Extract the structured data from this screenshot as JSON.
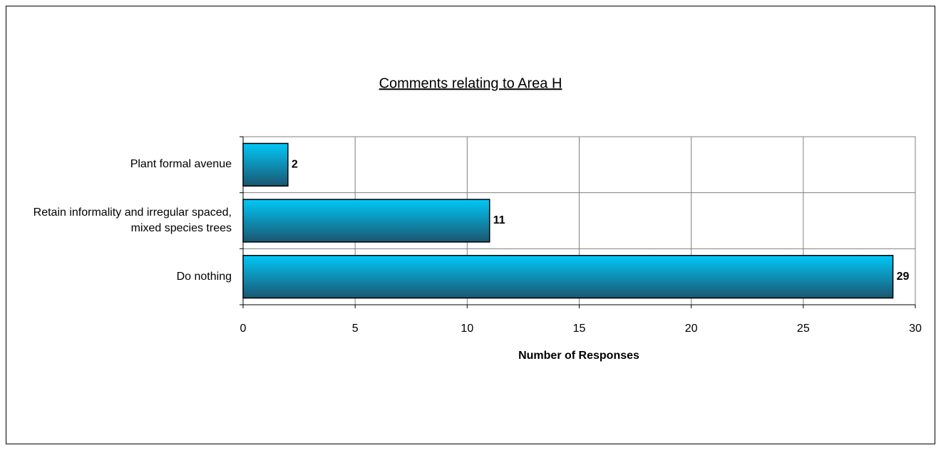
{
  "chart_data": {
    "type": "hbar",
    "title": "Comments relating to Area H",
    "categories": [
      "Plant formal avenue",
      "Retain informality and irregular spaced, mixed species trees",
      "Do nothing"
    ],
    "values": [
      2,
      11,
      29
    ],
    "xlabel": "Number of Responses",
    "xlim": [
      0,
      30
    ],
    "xticks": [
      0,
      5,
      10,
      15,
      20,
      25,
      30
    ],
    "grid": true,
    "color": "#00c8f8"
  }
}
